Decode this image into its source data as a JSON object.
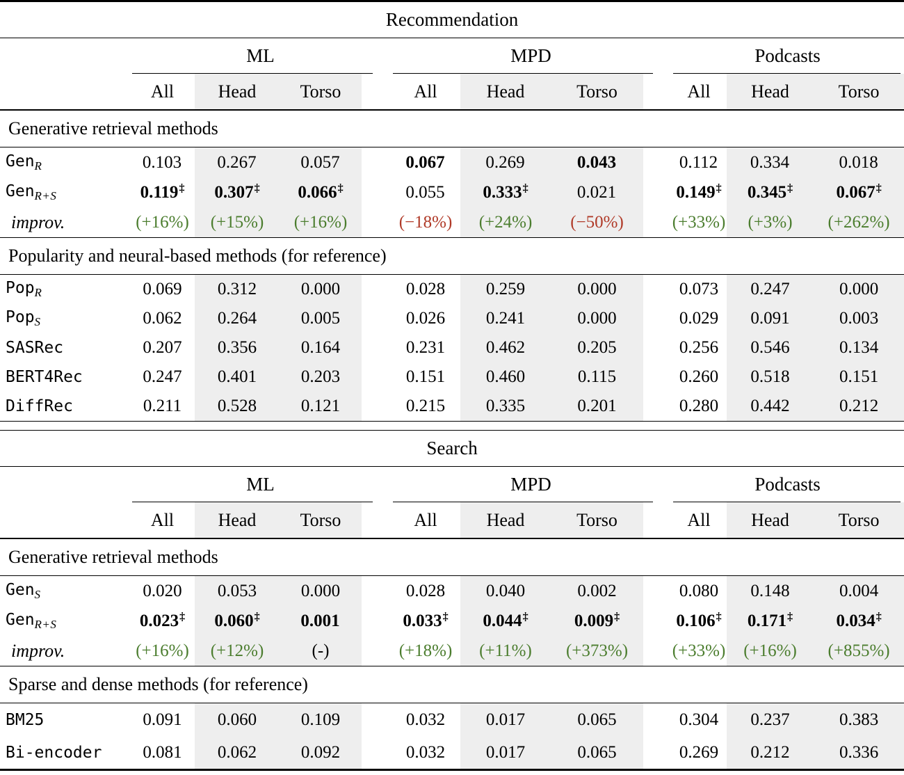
{
  "colors": {
    "positive_green": "#4b7d2e",
    "negative_red": "#b03a28",
    "shade_gray": "#eeeeee"
  },
  "table": {
    "sections": [
      {
        "title": "Recommendation",
        "groups": [
          {
            "label": "ML"
          },
          {
            "label": "MPD"
          },
          {
            "label": "Podcasts"
          }
        ],
        "subcolumns": [
          "All",
          "Head",
          "Torso",
          "All",
          "Head",
          "Torso",
          "All",
          "Head",
          "Torso"
        ],
        "blocks": [
          {
            "heading": "Generative retrieval methods",
            "rows": [
              {
                "label": {
                  "name": "Gen",
                  "sub": "R"
                },
                "cells": [
                  {
                    "v": "0.103"
                  },
                  {
                    "v": "0.267"
                  },
                  {
                    "v": "0.057"
                  },
                  {
                    "v": "0.067"
                  },
                  {
                    "v": "0.269"
                  },
                  {
                    "v": "0.043"
                  },
                  {
                    "v": "0.112"
                  },
                  {
                    "v": "0.334"
                  },
                  {
                    "v": "0.018"
                  }
                ]
              },
              {
                "label": {
                  "name": "Gen",
                  "sub": "R+S"
                },
                "cells": [
                  {
                    "v": "0.119",
                    "sup": "‡"
                  },
                  {
                    "v": "0.307",
                    "sup": "‡"
                  },
                  {
                    "v": "0.066",
                    "sup": "‡"
                  },
                  {
                    "v": "0.055"
                  },
                  {
                    "v": "0.333",
                    "sup": "‡"
                  },
                  {
                    "v": "0.021"
                  },
                  {
                    "v": "0.149",
                    "sup": "‡"
                  },
                  {
                    "v": "0.345",
                    "sup": "‡"
                  },
                  {
                    "v": "0.067",
                    "sup": "‡"
                  }
                ]
              },
              {
                "label": {
                  "italic": "improv."
                },
                "cells": [
                  {
                    "v": "(+16%)"
                  },
                  {
                    "v": "(+15%)"
                  },
                  {
                    "v": "(+16%)"
                  },
                  {
                    "v": "(−18%)"
                  },
                  {
                    "v": "(+24%)"
                  },
                  {
                    "v": "(−50%)"
                  },
                  {
                    "v": "(+33%)"
                  },
                  {
                    "v": "(+3%)"
                  },
                  {
                    "v": "(+262%)"
                  }
                ]
              }
            ]
          },
          {
            "heading": "Popularity and neural-based methods (for reference)",
            "rows": [
              {
                "label": {
                  "name": "Pop",
                  "sub": "R"
                },
                "cells": [
                  {
                    "v": "0.069"
                  },
                  {
                    "v": "0.312"
                  },
                  {
                    "v": "0.000"
                  },
                  {
                    "v": "0.028"
                  },
                  {
                    "v": "0.259"
                  },
                  {
                    "v": "0.000"
                  },
                  {
                    "v": "0.073"
                  },
                  {
                    "v": "0.247"
                  },
                  {
                    "v": "0.000"
                  }
                ]
              },
              {
                "label": {
                  "name": "Pop",
                  "sub": "S"
                },
                "cells": [
                  {
                    "v": "0.062"
                  },
                  {
                    "v": "0.264"
                  },
                  {
                    "v": "0.005"
                  },
                  {
                    "v": "0.026"
                  },
                  {
                    "v": "0.241"
                  },
                  {
                    "v": "0.000"
                  },
                  {
                    "v": "0.029"
                  },
                  {
                    "v": "0.091"
                  },
                  {
                    "v": "0.003"
                  }
                ]
              },
              {
                "label": {
                  "name": "SASRec"
                },
                "cells": [
                  {
                    "v": "0.207"
                  },
                  {
                    "v": "0.356"
                  },
                  {
                    "v": "0.164"
                  },
                  {
                    "v": "0.231"
                  },
                  {
                    "v": "0.462"
                  },
                  {
                    "v": "0.205"
                  },
                  {
                    "v": "0.256"
                  },
                  {
                    "v": "0.546"
                  },
                  {
                    "v": "0.134"
                  }
                ]
              },
              {
                "label": {
                  "name": "BERT4Rec"
                },
                "cells": [
                  {
                    "v": "0.247"
                  },
                  {
                    "v": "0.401"
                  },
                  {
                    "v": "0.203"
                  },
                  {
                    "v": "0.151"
                  },
                  {
                    "v": "0.460"
                  },
                  {
                    "v": "0.115"
                  },
                  {
                    "v": "0.260"
                  },
                  {
                    "v": "0.518"
                  },
                  {
                    "v": "0.151"
                  }
                ]
              },
              {
                "label": {
                  "name": "DiffRec"
                },
                "cells": [
                  {
                    "v": "0.211"
                  },
                  {
                    "v": "0.528"
                  },
                  {
                    "v": "0.121"
                  },
                  {
                    "v": "0.215"
                  },
                  {
                    "v": "0.335"
                  },
                  {
                    "v": "0.201"
                  },
                  {
                    "v": "0.280"
                  },
                  {
                    "v": "0.442"
                  },
                  {
                    "v": "0.212"
                  }
                ]
              }
            ]
          }
        ]
      },
      {
        "title": "Search",
        "groups": [
          {
            "label": "ML"
          },
          {
            "label": "MPD"
          },
          {
            "label": "Podcasts"
          }
        ],
        "subcolumns": [
          "All",
          "Head",
          "Torso",
          "All",
          "Head",
          "Torso",
          "All",
          "Head",
          "Torso"
        ],
        "blocks": [
          {
            "heading": "Generative retrieval methods",
            "rows": [
              {
                "label": {
                  "name": "Gen",
                  "sub": "S"
                },
                "cells": [
                  {
                    "v": "0.020"
                  },
                  {
                    "v": "0.053"
                  },
                  {
                    "v": "0.000"
                  },
                  {
                    "v": "0.028"
                  },
                  {
                    "v": "0.040"
                  },
                  {
                    "v": "0.002"
                  },
                  {
                    "v": "0.080"
                  },
                  {
                    "v": "0.148"
                  },
                  {
                    "v": "0.004"
                  }
                ]
              },
              {
                "label": {
                  "name": "Gen",
                  "sub": "R+S"
                },
                "cells": [
                  {
                    "v": "0.023",
                    "sup": "‡"
                  },
                  {
                    "v": "0.060",
                    "sup": "‡"
                  },
                  {
                    "v": "0.001"
                  },
                  {
                    "v": "0.033",
                    "sup": "‡"
                  },
                  {
                    "v": "0.044",
                    "sup": "‡"
                  },
                  {
                    "v": "0.009",
                    "sup": "‡"
                  },
                  {
                    "v": "0.106",
                    "sup": "‡"
                  },
                  {
                    "v": "0.171",
                    "sup": "‡"
                  },
                  {
                    "v": "0.034",
                    "sup": "‡"
                  }
                ]
              },
              {
                "label": {
                  "italic": "improv."
                },
                "cells": [
                  {
                    "v": "(+16%)"
                  },
                  {
                    "v": "(+12%)"
                  },
                  {
                    "v": "(-)"
                  },
                  {
                    "v": "(+18%)"
                  },
                  {
                    "v": "(+11%)"
                  },
                  {
                    "v": "(+373%)"
                  },
                  {
                    "v": "(+33%)"
                  },
                  {
                    "v": "(+16%)"
                  },
                  {
                    "v": "(+855%)"
                  }
                ]
              }
            ]
          },
          {
            "heading": "Sparse and dense methods (for reference)",
            "rows": [
              {
                "label": {
                  "name": "BM25"
                },
                "cells": [
                  {
                    "v": "0.091"
                  },
                  {
                    "v": "0.060"
                  },
                  {
                    "v": "0.109"
                  },
                  {
                    "v": "0.032"
                  },
                  {
                    "v": "0.017"
                  },
                  {
                    "v": "0.065"
                  },
                  {
                    "v": "0.304"
                  },
                  {
                    "v": "0.237"
                  },
                  {
                    "v": "0.383"
                  }
                ]
              },
              {
                "label": {
                  "name": "Bi-encoder"
                },
                "cells": [
                  {
                    "v": "0.081"
                  },
                  {
                    "v": "0.062"
                  },
                  {
                    "v": "0.092"
                  },
                  {
                    "v": "0.032"
                  },
                  {
                    "v": "0.017"
                  },
                  {
                    "v": "0.065"
                  },
                  {
                    "v": "0.269"
                  },
                  {
                    "v": "0.212"
                  },
                  {
                    "v": "0.336"
                  }
                ]
              }
            ]
          }
        ]
      }
    ]
  }
}
